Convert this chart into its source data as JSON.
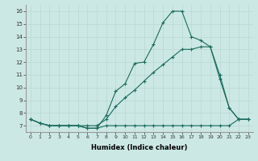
{
  "xlabel": "Humidex (Indice chaleur)",
  "xlim": [
    -0.5,
    23.5
  ],
  "ylim": [
    6.5,
    16.5
  ],
  "yticks": [
    7,
    8,
    9,
    10,
    11,
    12,
    13,
    14,
    15,
    16
  ],
  "xticks": [
    0,
    1,
    2,
    3,
    4,
    5,
    6,
    7,
    8,
    9,
    10,
    11,
    12,
    13,
    14,
    15,
    16,
    17,
    18,
    19,
    20,
    21,
    22,
    23
  ],
  "bg_color": "#cce8e4",
  "line_color": "#1a6b5e",
  "grid_color_major": "#b8d8d4",
  "grid_color_minor": "#d0e8e4",
  "line1_y": [
    7.5,
    7.2,
    7.0,
    7.0,
    7.0,
    7.0,
    6.8,
    6.8,
    7.0,
    7.0,
    7.0,
    7.0,
    7.0,
    7.0,
    7.0,
    7.0,
    7.0,
    7.0,
    7.0,
    7.0,
    7.0,
    7.0,
    7.5,
    7.5
  ],
  "line2_y": [
    7.5,
    7.2,
    7.0,
    7.0,
    7.0,
    7.0,
    6.8,
    6.8,
    7.8,
    9.7,
    10.3,
    11.9,
    12.0,
    13.4,
    15.1,
    16.0,
    16.0,
    14.0,
    13.7,
    13.2,
    10.7,
    8.4,
    7.5,
    7.5
  ],
  "line3_y": [
    7.5,
    7.2,
    7.0,
    7.0,
    7.0,
    7.0,
    7.0,
    7.0,
    7.5,
    8.5,
    9.2,
    9.8,
    10.5,
    11.2,
    11.8,
    12.4,
    13.0,
    13.0,
    13.2,
    13.2,
    11.0,
    8.4,
    7.5,
    7.5
  ]
}
